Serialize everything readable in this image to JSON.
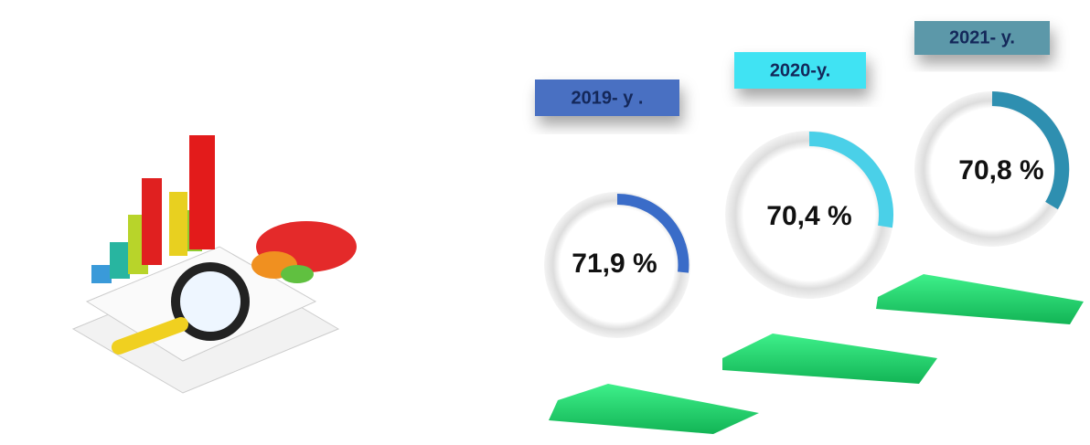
{
  "items": [
    {
      "year": "2019- y .",
      "value": "71,9 %"
    },
    {
      "year": "2020-y.",
      "value": "70,4 %"
    },
    {
      "year": "2021- y.",
      "value": "70,8 %"
    }
  ]
}
